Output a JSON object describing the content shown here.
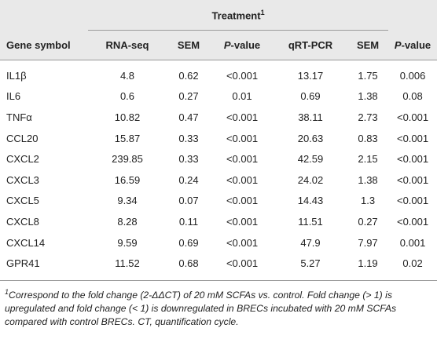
{
  "table": {
    "group_header": {
      "text": "Treatment",
      "sup": "1"
    },
    "headers": [
      {
        "text": "Gene symbol"
      },
      {
        "text": "RNA-seq"
      },
      {
        "text": "SEM"
      },
      {
        "italic": "P",
        "text": "-value"
      },
      {
        "text": "qRT-PCR"
      },
      {
        "text": "SEM"
      },
      {
        "italic": "P",
        "text": "-value"
      }
    ],
    "rows": [
      [
        "IL1β",
        "4.8",
        "0.62",
        "<0.001",
        "13.17",
        "1.75",
        "0.006"
      ],
      [
        "IL6",
        "0.6",
        "0.27",
        "0.01",
        "0.69",
        "1.38",
        "0.08"
      ],
      [
        "TNFα",
        "10.82",
        "0.47",
        "<0.001",
        "38.11",
        "2.73",
        "<0.001"
      ],
      [
        "CCL20",
        "15.87",
        "0.33",
        "<0.001",
        "20.63",
        "0.83",
        "<0.001"
      ],
      [
        "CXCL2",
        "239.85",
        "0.33",
        "<0.001",
        "42.59",
        "2.15",
        "<0.001"
      ],
      [
        "CXCL3",
        "16.59",
        "0.24",
        "<0.001",
        "24.02",
        "1.38",
        "<0.001"
      ],
      [
        "CXCL5",
        "9.34",
        "0.07",
        "<0.001",
        "14.43",
        "1.3",
        "<0.001"
      ],
      [
        "CXCL8",
        "8.28",
        "0.11",
        "<0.001",
        "11.51",
        "0.27",
        "<0.001"
      ],
      [
        "CXCL14",
        "9.59",
        "0.69",
        "<0.001",
        "47.9",
        "7.97",
        "0.001"
      ],
      [
        "GPR41",
        "11.52",
        "0.68",
        "<0.001",
        "5.27",
        "1.19",
        "0.02"
      ]
    ],
    "footnote": {
      "sup": "1",
      "text": "Correspond to the fold change (2-ΔΔCT) of 20 mM SCFAs vs. control. Fold change (> 1) is upregulated and fold change (< 1) is downregulated in BRECs incubated with 20 mM SCFAs compared with control BRECs. CT, quantification cycle."
    }
  }
}
